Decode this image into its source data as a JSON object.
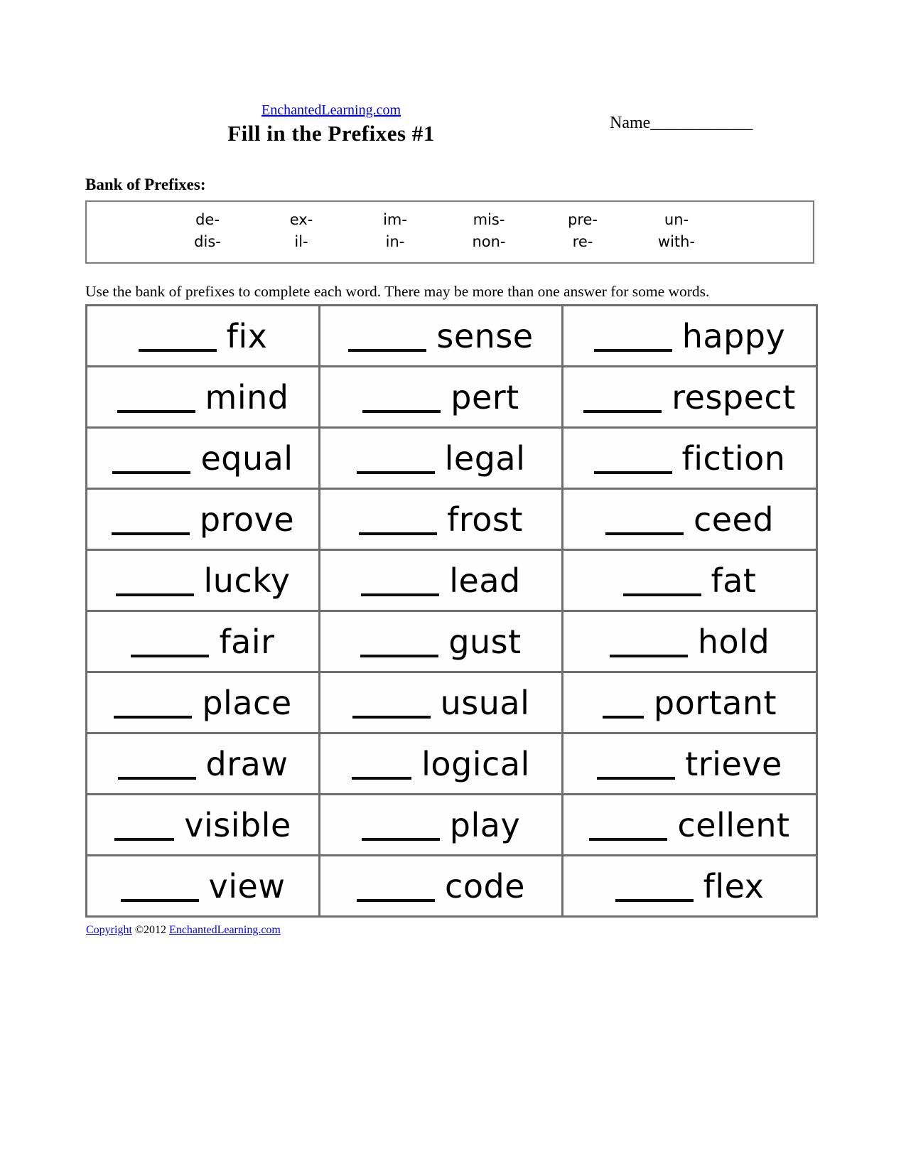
{
  "header": {
    "site_link": "EnchantedLearning.com",
    "title": "Fill in the Prefixes #1",
    "name_label": "Name",
    "name_line": "____________"
  },
  "prefix_bank": {
    "heading": "Bank of Prefixes:",
    "rows": [
      [
        "de-",
        "ex-",
        "im-",
        "mis-",
        "pre-",
        "un-"
      ],
      [
        "dis-",
        "il-",
        "in-",
        "non-",
        "re-",
        "with-"
      ]
    ]
  },
  "instruction": "Use the bank of prefixes to complete each word. There may be more than one answer for some words.",
  "word_table": {
    "rows": [
      [
        {
          "blank": "____",
          "word": "fix"
        },
        {
          "blank": "____",
          "word": "sense"
        },
        {
          "blank": "____",
          "word": "happy"
        }
      ],
      [
        {
          "blank": "____",
          "word": "mind"
        },
        {
          "blank": "____",
          "word": "pert"
        },
        {
          "blank": "____",
          "word": "respect"
        }
      ],
      [
        {
          "blank": "____",
          "word": "equal"
        },
        {
          "blank": "____",
          "word": "legal"
        },
        {
          "blank": "____",
          "word": "fiction"
        }
      ],
      [
        {
          "blank": "____",
          "word": "prove"
        },
        {
          "blank": "____",
          "word": "frost"
        },
        {
          "blank": "____",
          "word": "ceed"
        }
      ],
      [
        {
          "blank": "____",
          "word": "lucky"
        },
        {
          "blank": "____",
          "word": "lead"
        },
        {
          "blank": "____",
          "word": "fat"
        }
      ],
      [
        {
          "blank": "____",
          "word": "fair"
        },
        {
          "blank": "____",
          "word": "gust"
        },
        {
          "blank": "____",
          "word": "hold"
        }
      ],
      [
        {
          "blank": "____",
          "word": "place"
        },
        {
          "blank": "____",
          "word": "usual"
        },
        {
          "blank": "__",
          "word": "portant"
        }
      ],
      [
        {
          "blank": "____",
          "word": "draw"
        },
        {
          "blank": "___",
          "word": "logical"
        },
        {
          "blank": "____",
          "word": "trieve"
        }
      ],
      [
        {
          "blank": "___",
          "word": "visible"
        },
        {
          "blank": "____",
          "word": "play"
        },
        {
          "blank": "____",
          "word": "cellent"
        }
      ],
      [
        {
          "blank": "____",
          "word": "view"
        },
        {
          "blank": "____",
          "word": "code"
        },
        {
          "blank": "____",
          "word": "flex"
        }
      ]
    ]
  },
  "footer": {
    "copyright_link": "Copyright",
    "year": "©2012",
    "site_link": "EnchantedLearning.com"
  },
  "colors": {
    "link_blue": "#0000EE",
    "border_gray": "#6e6e6e",
    "text_black": "#000000"
  }
}
